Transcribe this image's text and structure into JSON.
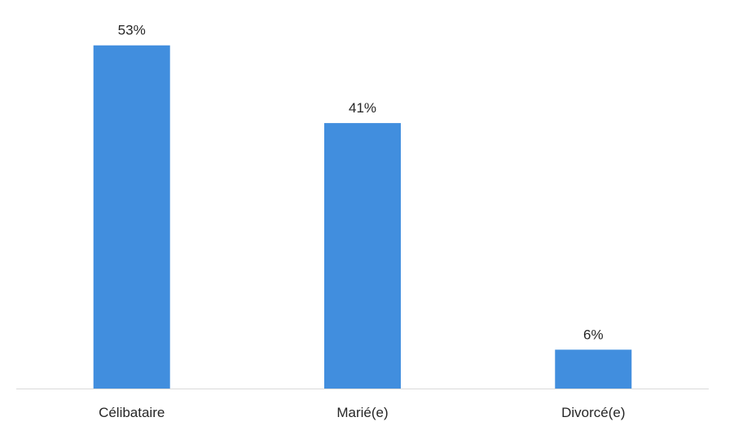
{
  "chart_data": {
    "type": "bar",
    "categories": [
      "Célibataire",
      "Marié(e)",
      "Divorcé(e)"
    ],
    "values": [
      53,
      41,
      6
    ],
    "data_labels": [
      "53%",
      "41%",
      "6%"
    ],
    "unit": "%",
    "ylim": [
      0,
      60
    ],
    "grid": false,
    "legend": "none",
    "colors": {
      "bar": "#418EDE",
      "axis": "#D9D9D9",
      "text": "#262626"
    }
  }
}
